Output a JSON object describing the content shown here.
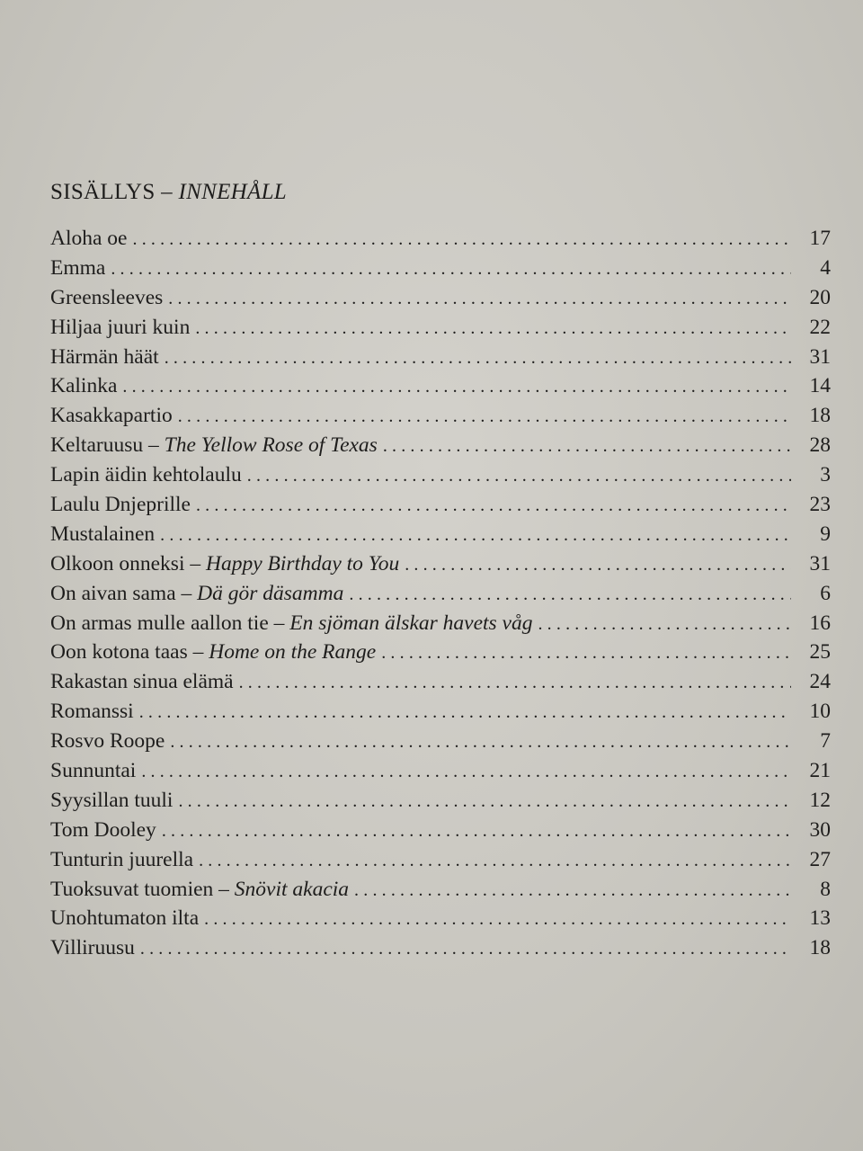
{
  "document": {
    "title": {
      "main": "SISÄLLYS",
      "separator": " – ",
      "alt": "INNEHÅLL"
    },
    "entries": [
      {
        "title": "Aloha oe",
        "page": "17"
      },
      {
        "title": "Emma",
        "page": "4"
      },
      {
        "title": "Greensleeves",
        "page": "20"
      },
      {
        "title": "Hiljaa juuri kuin",
        "page": "22"
      },
      {
        "title": "Härmän häät",
        "page": "31"
      },
      {
        "title": "Kalinka",
        "page": "14"
      },
      {
        "title": "Kasakkapartio",
        "page": "18"
      },
      {
        "title": "Keltaruusu",
        "alt": "The Yellow Rose of Texas",
        "page": "28"
      },
      {
        "title": "Lapin äidin kehtolaulu",
        "page": "3"
      },
      {
        "title": "Laulu Dnjeprille",
        "page": "23"
      },
      {
        "title": "Mustalainen",
        "page": "9"
      },
      {
        "title": "Olkoon onneksi",
        "alt": "Happy Birthday to You",
        "page": "31"
      },
      {
        "title": "On aivan sama",
        "alt": "Dä gör däsamma",
        "page": "6"
      },
      {
        "title": "On armas mulle aallon tie",
        "alt": "En sjöman älskar havets våg",
        "page": "16"
      },
      {
        "title": "Oon kotona taas",
        "alt": "Home on the Range",
        "page": "25"
      },
      {
        "title": "Rakastan sinua elämä",
        "page": "24"
      },
      {
        "title": "Romanssi",
        "page": "10"
      },
      {
        "title": "Rosvo Roope",
        "page": "7"
      },
      {
        "title": "Sunnuntai",
        "page": "21"
      },
      {
        "title": "Syysillan tuuli",
        "page": "12"
      },
      {
        "title": "Tom Dooley",
        "page": "30"
      },
      {
        "title": "Tunturin juurella",
        "page": "27"
      },
      {
        "title": "Tuoksuvat tuomien",
        "alt": "Snövit akacia",
        "page": "8"
      },
      {
        "title": "Unohtumaton ilta",
        "page": "13"
      },
      {
        "title": "Villiruusu",
        "page": "18"
      }
    ]
  }
}
